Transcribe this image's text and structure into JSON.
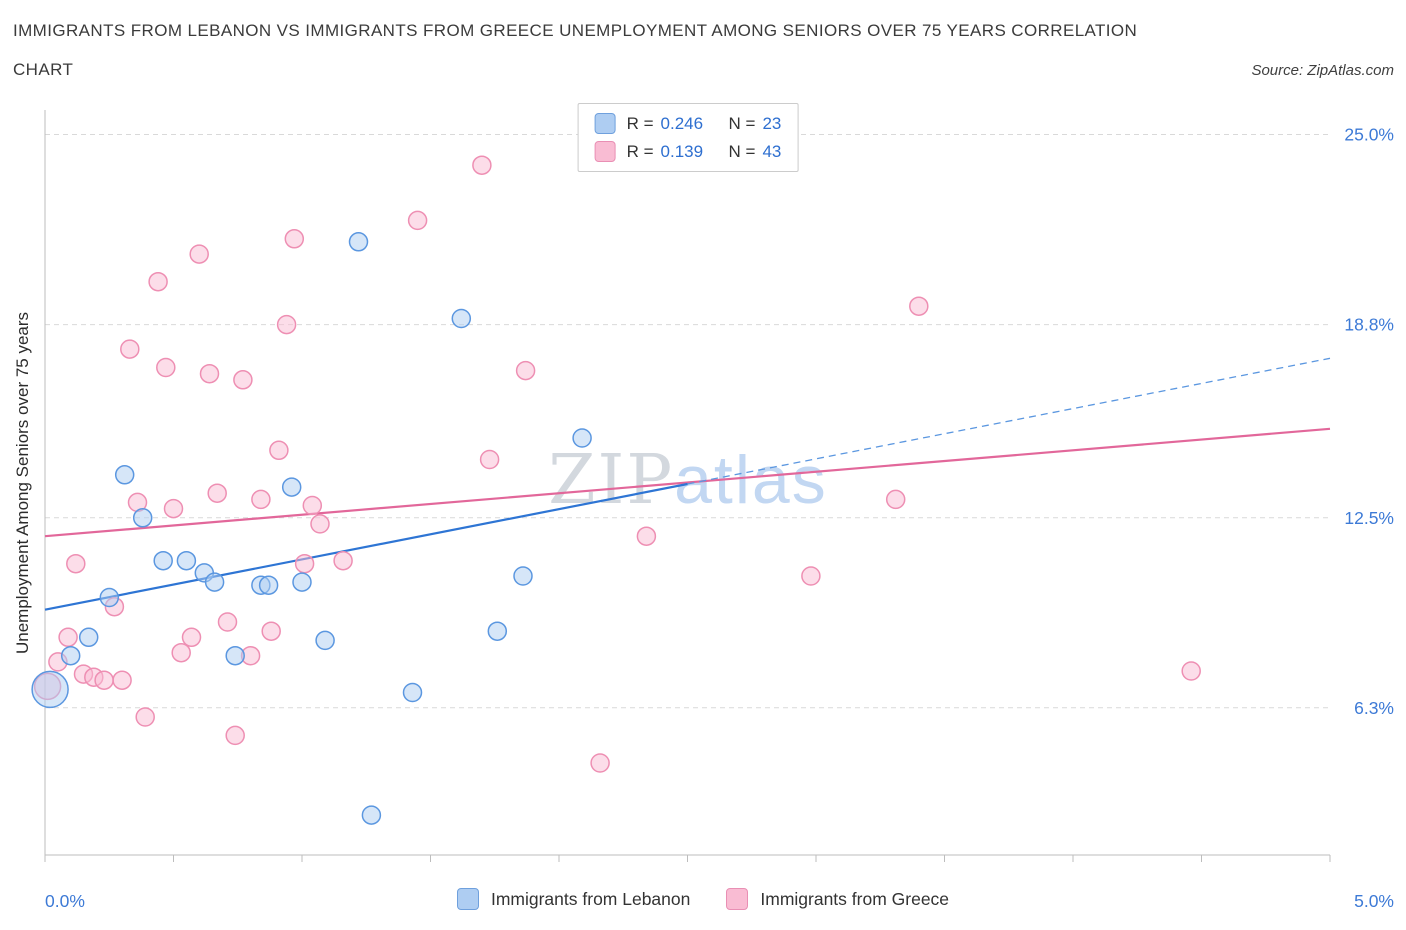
{
  "header": {
    "title_line1": "IMMIGRANTS FROM LEBANON VS IMMIGRANTS FROM GREECE UNEMPLOYMENT AMONG SENIORS OVER 75 YEARS CORRELATION",
    "title_line2": "CHART",
    "source": "Source: ZipAtlas.com"
  },
  "correlation_legend": {
    "rows": [
      {
        "r_label": "R =",
        "r_value": "0.246",
        "n_label": "N =",
        "n_value": "23"
      },
      {
        "r_label": "R =",
        "r_value": "0.139",
        "n_label": "N =",
        "n_value": "43"
      }
    ]
  },
  "watermark": {
    "part1": "ZIP",
    "part2": "atlas"
  },
  "bottom_legend": [
    {
      "label": "Immigrants from Lebanon"
    },
    {
      "label": "Immigrants from Greece"
    }
  ],
  "chart_data": {
    "type": "scatter",
    "title": "Immigrants from Lebanon vs Immigrants from Greece Unemployment Among Seniors over 75 years Correlation Chart",
    "xlabel": "",
    "ylabel": "Unemployment Among Seniors over 75 years",
    "xlim": [
      0.0,
      5.0
    ],
    "ylim": [
      1.5,
      25.8
    ],
    "grid": true,
    "legend_position": "bottom",
    "x_ticks": [
      {
        "value": 0.0,
        "label": "0.0%"
      },
      {
        "value": 5.0,
        "label": "5.0%"
      }
    ],
    "x_axis_minor_ticks": [
      0,
      0.5,
      1.0,
      1.5,
      2.0,
      2.5,
      3.0,
      3.5,
      4.0,
      4.5,
      5.0
    ],
    "y_ticks": [
      {
        "value": 25.0,
        "label": "25.0%"
      },
      {
        "value": 18.8,
        "label": "18.8%"
      },
      {
        "value": 12.5,
        "label": "12.5%"
      },
      {
        "value": 6.3,
        "label": "6.3%"
      }
    ],
    "colors": {
      "grid": "#d9d9d9",
      "axis": "#bdbdbd",
      "axis_tick_label": "#3d7ad6",
      "lebanon_trend": "#2e75d4",
      "greece_trend": "#e2679a"
    },
    "series": [
      {
        "name": "Immigrants from Lebanon",
        "short": "lebanon",
        "R": 0.246,
        "N": 23,
        "fill": "#aecdf2",
        "stroke": "#5b97e0",
        "points": [
          [
            0.02,
            6.9,
            18
          ],
          [
            0.1,
            8.0
          ],
          [
            0.17,
            8.6
          ],
          [
            0.25,
            9.9
          ],
          [
            0.31,
            13.9
          ],
          [
            0.38,
            12.5
          ],
          [
            0.46,
            11.1
          ],
          [
            0.55,
            11.1
          ],
          [
            0.62,
            10.7
          ],
          [
            0.66,
            10.4
          ],
          [
            0.74,
            8.0
          ],
          [
            0.84,
            10.3
          ],
          [
            0.87,
            10.3
          ],
          [
            0.96,
            13.5
          ],
          [
            1.0,
            10.4
          ],
          [
            1.09,
            8.5
          ],
          [
            1.22,
            21.5
          ],
          [
            1.27,
            2.8
          ],
          [
            1.43,
            6.8
          ],
          [
            1.62,
            19.0
          ],
          [
            1.76,
            8.8
          ],
          [
            1.86,
            10.6
          ],
          [
            2.09,
            15.1
          ]
        ]
      },
      {
        "name": "Immigrants from Greece",
        "short": "greece",
        "R": 0.139,
        "N": 43,
        "fill": "#f9bcd3",
        "stroke": "#ee8fb3",
        "points": [
          [
            0.01,
            7.0,
            13
          ],
          [
            0.05,
            7.8
          ],
          [
            0.09,
            8.6
          ],
          [
            0.12,
            11.0
          ],
          [
            0.15,
            7.4
          ],
          [
            0.19,
            7.3
          ],
          [
            0.23,
            7.2
          ],
          [
            0.27,
            9.6
          ],
          [
            0.3,
            7.2
          ],
          [
            0.33,
            18.0
          ],
          [
            0.36,
            13.0
          ],
          [
            0.39,
            6.0
          ],
          [
            0.44,
            20.2
          ],
          [
            0.47,
            17.4
          ],
          [
            0.5,
            12.8
          ],
          [
            0.53,
            8.1
          ],
          [
            0.57,
            8.6
          ],
          [
            0.6,
            21.1
          ],
          [
            0.64,
            17.2
          ],
          [
            0.67,
            13.3
          ],
          [
            0.71,
            9.1
          ],
          [
            0.74,
            5.4
          ],
          [
            0.77,
            17.0
          ],
          [
            0.8,
            8.0
          ],
          [
            0.84,
            13.1
          ],
          [
            0.88,
            8.8
          ],
          [
            0.91,
            14.7
          ],
          [
            0.94,
            18.8
          ],
          [
            0.97,
            21.6
          ],
          [
            1.01,
            11.0
          ],
          [
            1.04,
            12.9
          ],
          [
            1.07,
            12.3
          ],
          [
            1.16,
            11.1
          ],
          [
            1.45,
            22.2
          ],
          [
            1.7,
            24.0
          ],
          [
            1.73,
            14.4
          ],
          [
            1.87,
            17.3
          ],
          [
            2.16,
            4.5
          ],
          [
            2.34,
            11.9
          ],
          [
            2.98,
            10.6
          ],
          [
            3.31,
            13.1
          ],
          [
            3.4,
            19.4
          ],
          [
            4.46,
            7.5
          ]
        ]
      }
    ],
    "trend_lines": [
      {
        "name": "greece-trend",
        "x1": 0.0,
        "y1": 11.9,
        "x2": 5.0,
        "y2": 15.4,
        "style": "solid",
        "color": "#e2679a",
        "width": 2.2
      },
      {
        "name": "lebanon-trend",
        "x1": 0.0,
        "y1": 9.5,
        "x2": 2.5,
        "y2": 13.6,
        "style": "solid",
        "color": "#2e75d4",
        "width": 2.2
      },
      {
        "name": "lebanon-trend-projection",
        "x1": 2.5,
        "y1": 13.6,
        "x2": 5.0,
        "y2": 17.7,
        "style": "dashed",
        "color": "#5b97e0",
        "width": 1.3
      }
    ]
  }
}
